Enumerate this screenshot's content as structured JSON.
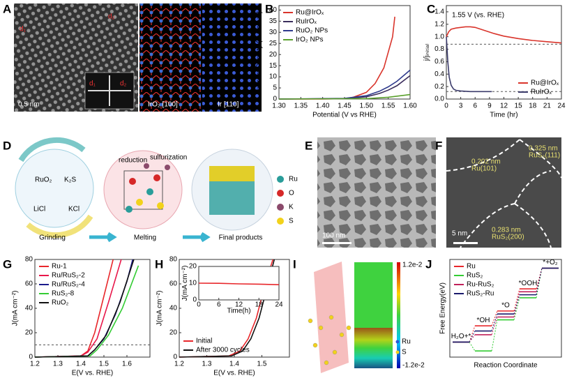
{
  "panel_labels": [
    "A",
    "B",
    "C",
    "D",
    "E",
    "F",
    "G",
    "H",
    "I",
    "J"
  ],
  "images": {
    "A": {
      "left": [
        "d₁",
        "d₂",
        "0.5 nm",
        "d₁",
        "d₂"
      ],
      "right": [
        "IrO₂ [100]",
        "Ir [110]"
      ]
    },
    "E": {
      "scale": "100 nm"
    },
    "F": {
      "labels": [
        "0.202 nm",
        "Ru(101)",
        "0.325 nm",
        "RuS₂(111)",
        "0.283 nm",
        "RuS₂(200)"
      ],
      "scale": "5 nm"
    },
    "I": {
      "colorbar": [
        "1.2e-2",
        "-1.2e-2"
      ],
      "legend": [
        "Ru",
        "S"
      ]
    }
  },
  "schematic": {
    "precursors": [
      "RuO₂",
      "K₂S",
      "LiCl",
      "KCl"
    ],
    "process": [
      "reduction",
      "sulfurization"
    ],
    "steps": [
      "Grinding",
      "Melting",
      "Final products"
    ],
    "legend": [
      "Ru",
      "O",
      "K",
      "S"
    ]
  },
  "chart_data": [
    {
      "type": "line",
      "xlabel": "Potential (V vs RHE)",
      "ylabel": "Current Density (mA cm⁻²)",
      "xlim": [
        1.3,
        1.6
      ],
      "xticks": [
        {
          "value": 1.3,
          "label": "1.30"
        },
        {
          "value": 1.35,
          "label": "1.35"
        },
        {
          "value": 1.4,
          "label": "1.40"
        },
        {
          "value": 1.45,
          "label": "1.45"
        },
        {
          "value": 1.5,
          "label": "1.50"
        },
        {
          "value": 1.55,
          "label": "1.55"
        },
        {
          "value": 1.6,
          "label": "1.60"
        }
      ],
      "ylim": [
        0,
        42
      ],
      "yticks": [
        0,
        5,
        10,
        15,
        20,
        25,
        30,
        35,
        40
      ],
      "legend": "upper-left",
      "series": [
        {
          "name": "Ru@IrOₓ",
          "color": "#d9342b",
          "x": [
            1.3,
            1.4,
            1.45,
            1.47,
            1.5,
            1.52,
            1.54,
            1.56,
            1.565
          ],
          "values": [
            0,
            0,
            0.2,
            0.8,
            3,
            7,
            14,
            28,
            37
          ]
        },
        {
          "name": "RuIrOₓ",
          "color": "#3a2d5c",
          "x": [
            1.3,
            1.45,
            1.5,
            1.53,
            1.55,
            1.57,
            1.6
          ],
          "values": [
            0,
            0.2,
            1,
            2.5,
            4,
            6,
            10.5
          ]
        },
        {
          "name": "RuO₂ NPs",
          "color": "#2e3a8c",
          "x": [
            1.3,
            1.45,
            1.5,
            1.53,
            1.55,
            1.57,
            1.6
          ],
          "values": [
            0,
            0.3,
            1.5,
            3.5,
            5.5,
            8,
            13
          ]
        },
        {
          "name": "IrO₂ NPs",
          "color": "#5aa02c",
          "x": [
            1.3,
            1.5,
            1.55,
            1.6
          ],
          "values": [
            0,
            0.2,
            0.8,
            2
          ]
        }
      ]
    },
    {
      "type": "line",
      "xlabel": "Time (hr)",
      "ylabel": "j/jᵢₙᵢₜᵢₐₗ",
      "annotations": [
        "1.55 V (vs. RHE)"
      ],
      "xlim": [
        0,
        24
      ],
      "xticks": [
        0,
        3,
        6,
        9,
        12,
        15,
        18,
        21,
        24
      ],
      "ylim": [
        0,
        1.5
      ],
      "yticks": [
        {
          "value": 0,
          "label": "0.0"
        },
        {
          "value": 0.2,
          "label": "0.2"
        },
        {
          "value": 0.4,
          "label": "0.4"
        },
        {
          "value": 0.6,
          "label": "0.6"
        },
        {
          "value": 0.8,
          "label": "0.8"
        },
        {
          "value": 1,
          "label": "1.0"
        },
        {
          "value": 1.2,
          "label": "1.2"
        },
        {
          "value": 1.4,
          "label": "1.4"
        }
      ],
      "hlines": [
        0.88,
        0.12
      ],
      "legend": "lower-right",
      "series": [
        {
          "name": "Ru@IrOₓ",
          "color": "#d9342b",
          "x": [
            0,
            0.5,
            1,
            2,
            3,
            4,
            5,
            6,
            8,
            10,
            12,
            15,
            18,
            21,
            24
          ],
          "values": [
            1.0,
            1.08,
            1.12,
            1.14,
            1.15,
            1.16,
            1.16,
            1.15,
            1.1,
            1.05,
            1.01,
            0.97,
            0.94,
            0.92,
            0.9
          ]
        },
        {
          "name": "RuIrOₓ",
          "color": "#3b3b6b",
          "x": [
            0,
            0.3,
            0.6,
            1,
            1.5,
            2,
            3,
            5,
            7,
            9.5
          ],
          "values": [
            1.0,
            0.6,
            0.35,
            0.22,
            0.16,
            0.14,
            0.13,
            0.12,
            0.12,
            0.12
          ]
        }
      ]
    },
    {
      "type": "line",
      "xlabel": "E(V vs. RHE)",
      "ylabel": "J(mA cm⁻²)",
      "xlim": [
        1.2,
        1.7
      ],
      "xticks": [
        1.2,
        1.3,
        1.4,
        1.5,
        1.6
      ],
      "ylim": [
        0,
        80
      ],
      "yticks": [
        0,
        20,
        40,
        60,
        80
      ],
      "hlines": [
        10
      ],
      "legend": "upper-left",
      "series": [
        {
          "name": "Ru-1",
          "color": "#e8272b",
          "x": [
            1.2,
            1.4,
            1.43,
            1.46,
            1.5,
            1.54
          ],
          "values": [
            0,
            1,
            5,
            20,
            50,
            80
          ]
        },
        {
          "name": "Ru/RuS₂-2",
          "color": "#e8174a",
          "x": [
            1.2,
            1.4,
            1.43,
            1.47,
            1.52,
            1.575
          ],
          "values": [
            0,
            1,
            4,
            15,
            45,
            80
          ]
        },
        {
          "name": "Ru/RuS₂-4",
          "color": "#1a1a8c",
          "x": [
            1.2,
            1.43,
            1.46,
            1.5,
            1.55,
            1.6,
            1.625
          ],
          "values": [
            0,
            1,
            6,
            15,
            35,
            62,
            80
          ]
        },
        {
          "name": "RuS₂-8",
          "color": "#33cc33",
          "x": [
            1.2,
            1.44,
            1.47,
            1.52,
            1.58,
            1.65
          ],
          "values": [
            0,
            1,
            6,
            18,
            40,
            75
          ]
        },
        {
          "name": "RuO₂",
          "color": "#111111",
          "x": [
            1.2,
            1.43,
            1.46,
            1.51,
            1.57,
            1.63
          ],
          "values": [
            0,
            1,
            6,
            18,
            45,
            80
          ]
        }
      ]
    },
    {
      "type": "line",
      "xlabel": "E(V vs. RHE)",
      "ylabel": "J(mA cm⁻²)",
      "xlim": [
        1.2,
        1.6
      ],
      "xticks": [
        1.2,
        1.3,
        1.4,
        1.5
      ],
      "ylim": [
        0,
        80
      ],
      "yticks": [
        0,
        20,
        40,
        60,
        80
      ],
      "legend": "lower-left",
      "series": [
        {
          "name": "Initial",
          "color": "#e8272b",
          "x": [
            1.2,
            1.38,
            1.42,
            1.45,
            1.48,
            1.51,
            1.54
          ],
          "values": [
            0,
            1,
            5,
            15,
            32,
            58,
            80
          ]
        },
        {
          "name": "After 3000 cycles",
          "color": "#111111",
          "x": [
            1.2,
            1.39,
            1.43,
            1.46,
            1.49,
            1.52,
            1.545
          ],
          "values": [
            0,
            1,
            5,
            15,
            32,
            58,
            80
          ]
        }
      ]
    },
    {
      "type": "line",
      "xlabel": "Time(h)",
      "ylabel": "J(mA cm⁻²)",
      "xlim": [
        0,
        24
      ],
      "xticks": [
        0,
        6,
        12,
        18,
        24
      ],
      "ylim": [
        0,
        20
      ],
      "yticks": [
        0,
        10,
        20
      ],
      "series": [
        {
          "color": "#e8272b",
          "x": [
            0,
            6,
            12,
            18,
            24
          ],
          "values": [
            10,
            9.9,
            9.6,
            9.4,
            9.1
          ]
        }
      ]
    },
    {
      "type": "step",
      "xlabel": "Reaction Coordinate",
      "ylabel": "Free Energy(eV)",
      "categories": [
        "H₂O+*",
        "*OH",
        "*O",
        "*OOH",
        "*+O₂"
      ],
      "ylim": [
        -1,
        5.5
      ],
      "legend": "upper-left",
      "series": [
        {
          "name": "Ru",
          "color": "#e8272b",
          "values": [
            0,
            1.08,
            2.07,
            3.54,
            4.92
          ]
        },
        {
          "name": "RuS₂",
          "color": "#33cc33",
          "values": [
            0,
            -0.59,
            1.48,
            2.95,
            4.92
          ]
        },
        {
          "name": "Ru-RuS₂",
          "color": "#c0205a",
          "values": [
            0,
            0.49,
            1.67,
            3.35,
            4.92
          ]
        },
        {
          "name": "RuS₂-Ru",
          "color": "#1a1a6c",
          "values": [
            0,
            0.74,
            1.87,
            3.15,
            4.92
          ]
        }
      ]
    }
  ]
}
